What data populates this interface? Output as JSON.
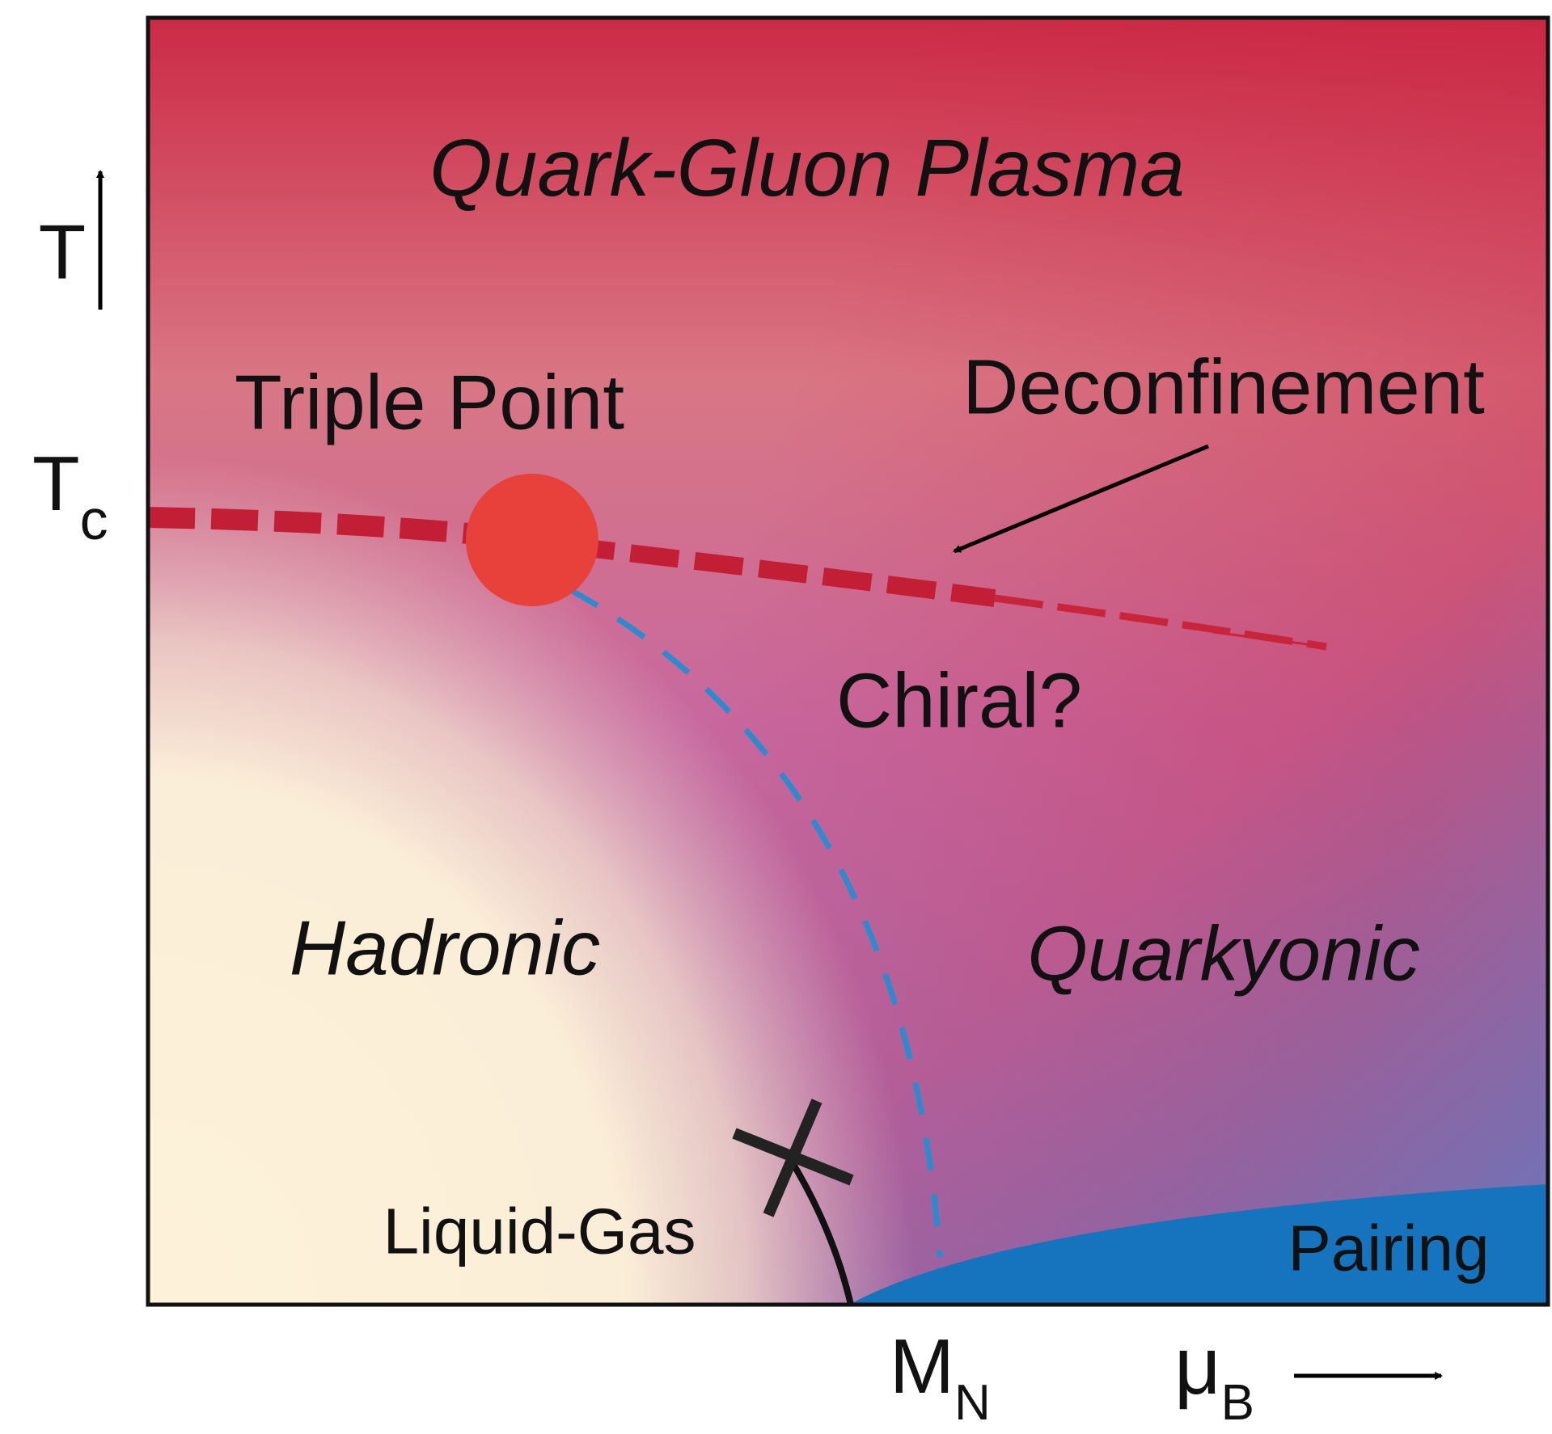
{
  "diagram": {
    "regions": {
      "qgp": "Quark-Gluon Plasma",
      "hadronic": "Hadronic",
      "quarkyonic": "Quarkyonic",
      "pairing": "Pairing"
    },
    "annotations": {
      "triple_point": "Triple Point",
      "deconfinement": "Deconfinement",
      "chiral": "Chiral?",
      "liquid_gas": "Liquid-Gas"
    },
    "axes": {
      "y_label": "T",
      "tc": {
        "base": "T",
        "sub": "c"
      },
      "mn": {
        "base": "M",
        "sub": "N"
      },
      "x_label": {
        "base": "μ",
        "sub": "B"
      }
    }
  }
}
